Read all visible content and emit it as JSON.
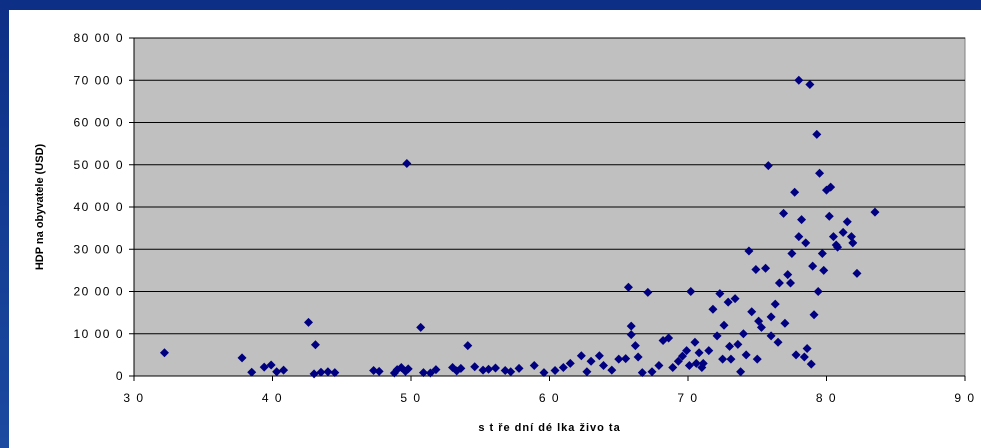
{
  "chart_data": {
    "type": "scatter",
    "xlabel": "s t ře dní dé lka živo ta",
    "ylabel": "HDP na obyvatele (USD)",
    "xlim": [
      30,
      90
    ],
    "ylim": [
      0,
      80000
    ],
    "x_ticks": [
      30,
      40,
      50,
      60,
      70,
      80,
      90
    ],
    "y_ticks": [
      0,
      10000,
      20000,
      30000,
      40000,
      50000,
      60000,
      70000,
      80000
    ],
    "x_tick_labels": [
      "3 0",
      "4 0",
      "5 0",
      "6 0",
      "7 0",
      "8 0",
      "9 0"
    ],
    "y_tick_labels": [
      "0",
      "10 00 0",
      "20 00 0",
      "30 00 0",
      "40 00 0",
      "50 00 0",
      "60 00 0",
      "70 00 0",
      "80 00 0"
    ],
    "grid": true,
    "plot_background": "#c0c0c0",
    "marker_color": "#000080",
    "marker": "diamond",
    "series": [
      {
        "values": [
          [
            32.2,
            5500
          ],
          [
            37.8,
            4300
          ],
          [
            38.5,
            900
          ],
          [
            39.4,
            2100
          ],
          [
            39.9,
            2600
          ],
          [
            40.3,
            1000
          ],
          [
            40.8,
            1400
          ],
          [
            42.6,
            12700
          ],
          [
            43.1,
            7400
          ],
          [
            43.0,
            500
          ],
          [
            43.5,
            900
          ],
          [
            44.0,
            1000
          ],
          [
            44.5,
            800
          ],
          [
            47.3,
            1300
          ],
          [
            47.7,
            1100
          ],
          [
            48.8,
            700
          ],
          [
            49.0,
            1500
          ],
          [
            49.3,
            2000
          ],
          [
            49.6,
            1100
          ],
          [
            49.8,
            1700
          ],
          [
            49.7,
            50300
          ],
          [
            50.7,
            11500
          ],
          [
            50.9,
            800
          ],
          [
            51.4,
            700
          ],
          [
            51.8,
            1500
          ],
          [
            53.0,
            2000
          ],
          [
            53.3,
            1200
          ],
          [
            53.6,
            1800
          ],
          [
            54.1,
            7200
          ],
          [
            54.6,
            2200
          ],
          [
            55.2,
            1400
          ],
          [
            55.6,
            1600
          ],
          [
            56.1,
            1900
          ],
          [
            56.8,
            1300
          ],
          [
            57.2,
            1000
          ],
          [
            57.8,
            1800
          ],
          [
            58.9,
            2500
          ],
          [
            59.6,
            800
          ],
          [
            60.4,
            1300
          ],
          [
            61.0,
            2000
          ],
          [
            61.5,
            3000
          ],
          [
            62.3,
            4800
          ],
          [
            62.7,
            1000
          ],
          [
            63.0,
            3500
          ],
          [
            63.6,
            4800
          ],
          [
            63.9,
            2500
          ],
          [
            64.5,
            1400
          ],
          [
            65.0,
            4000
          ],
          [
            65.5,
            4100
          ],
          [
            65.7,
            21000
          ],
          [
            65.9,
            11800
          ],
          [
            65.9,
            9800
          ],
          [
            66.2,
            7200
          ],
          [
            66.4,
            4500
          ],
          [
            66.7,
            800
          ],
          [
            67.1,
            19800
          ],
          [
            67.4,
            1000
          ],
          [
            67.9,
            2500
          ],
          [
            68.2,
            8400
          ],
          [
            68.6,
            9000
          ],
          [
            68.9,
            2000
          ],
          [
            69.3,
            3500
          ],
          [
            69.6,
            4700
          ],
          [
            69.9,
            6000
          ],
          [
            70.2,
            20000
          ],
          [
            70.1,
            2500
          ],
          [
            70.5,
            8000
          ],
          [
            70.8,
            5500
          ],
          [
            71.1,
            3000
          ],
          [
            71.5,
            6000
          ],
          [
            71.8,
            15800
          ],
          [
            72.1,
            9500
          ],
          [
            72.3,
            19500
          ],
          [
            72.6,
            12000
          ],
          [
            72.9,
            17500
          ],
          [
            73.1,
            4000
          ],
          [
            73.4,
            18300
          ],
          [
            73.6,
            7500
          ],
          [
            73.8,
            1000
          ],
          [
            74.0,
            10000
          ],
          [
            74.4,
            29600
          ],
          [
            74.6,
            15200
          ],
          [
            74.9,
            25200
          ],
          [
            75.1,
            13000
          ],
          [
            75.3,
            11500
          ],
          [
            75.6,
            25500
          ],
          [
            75.8,
            49800
          ],
          [
            76.0,
            14000
          ],
          [
            76.3,
            17000
          ],
          [
            76.6,
            22000
          ],
          [
            76.9,
            38500
          ],
          [
            77.2,
            24000
          ],
          [
            77.5,
            29000
          ],
          [
            77.7,
            43500
          ],
          [
            78.0,
            70000
          ],
          [
            78.2,
            37000
          ],
          [
            78.5,
            31500
          ],
          [
            78.8,
            69000
          ],
          [
            79.0,
            26000
          ],
          [
            79.3,
            57200
          ],
          [
            79.5,
            48000
          ],
          [
            79.7,
            29000
          ],
          [
            80.0,
            44000
          ],
          [
            80.3,
            44700
          ],
          [
            80.5,
            33000
          ],
          [
            80.8,
            30500
          ],
          [
            81.2,
            34000
          ],
          [
            81.5,
            36500
          ],
          [
            81.8,
            33000
          ],
          [
            82.2,
            24300
          ],
          [
            83.5,
            38800
          ],
          [
            76.5,
            8000
          ],
          [
            77.0,
            12500
          ],
          [
            77.8,
            5000
          ],
          [
            78.4,
            4500
          ],
          [
            78.9,
            2800
          ],
          [
            78.6,
            6500
          ],
          [
            79.1,
            14500
          ],
          [
            75.0,
            4000
          ],
          [
            74.2,
            5000
          ],
          [
            73.0,
            7000
          ],
          [
            72.5,
            4000
          ],
          [
            71.0,
            2000
          ],
          [
            70.6,
            3000
          ],
          [
            76.0,
            9500
          ],
          [
            77.4,
            22000
          ],
          [
            78.0,
            33000
          ],
          [
            79.8,
            25000
          ],
          [
            80.2,
            37800
          ],
          [
            79.4,
            20000
          ],
          [
            80.7,
            31000
          ],
          [
            81.9,
            31500
          ]
        ]
      }
    ]
  }
}
